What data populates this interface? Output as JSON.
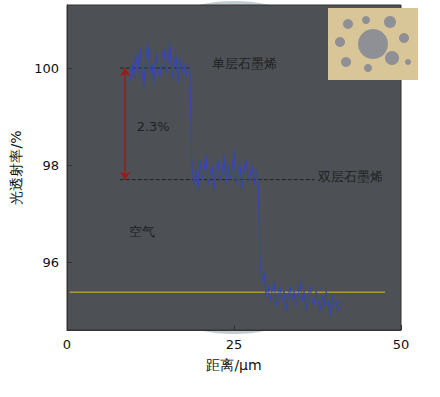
{
  "chart_data": {
    "type": "line",
    "x_label": "距离/μm",
    "y_label": "光透射率/%",
    "color": "#3246b8",
    "xlim": [
      0,
      50
    ],
    "ylim": [
      94.6,
      101.3
    ],
    "xticks": [
      0,
      25,
      50
    ],
    "yticks": [
      96,
      98,
      100
    ],
    "grid": false,
    "x": [
      9.4,
      9.7,
      10.0,
      10.3,
      10.6,
      10.9,
      11.2,
      11.5,
      11.8,
      12.1,
      12.4,
      12.7,
      13.0,
      13.3,
      13.6,
      13.9,
      14.2,
      14.5,
      14.8,
      15.1,
      15.4,
      15.7,
      16.0,
      16.3,
      16.6,
      16.9,
      17.2,
      17.5,
      17.8,
      18.1,
      18.4,
      18.7,
      19.0,
      19.3,
      19.6,
      19.9,
      20.2,
      20.5,
      20.8,
      21.1,
      21.4,
      21.7,
      22.0,
      22.3,
      22.6,
      22.9,
      23.2,
      23.5,
      23.8,
      24.1,
      24.4,
      24.7,
      25.0,
      25.3,
      25.6,
      25.9,
      26.2,
      26.5,
      26.8,
      27.1,
      27.4,
      27.7,
      28.0,
      28.3,
      28.6,
      28.9,
      29.2,
      29.5,
      29.8,
      30.1,
      30.4,
      30.7,
      31.0,
      31.3,
      31.6,
      31.9,
      32.2,
      32.5,
      32.8,
      33.1,
      33.4,
      33.7,
      34.0,
      34.3,
      34.6,
      34.9,
      35.2,
      35.5,
      35.8,
      36.1,
      36.4,
      36.7,
      37.0,
      37.3,
      37.6,
      37.9,
      38.2,
      38.5,
      38.8,
      39.1,
      39.4,
      39.7,
      40.0,
      40.3,
      40.6,
      40.9
    ],
    "values": [
      99.7,
      100.1,
      99.8,
      100.3,
      99.9,
      100.4,
      100.0,
      99.6,
      100.2,
      100.5,
      99.9,
      100.1,
      99.7,
      100.3,
      100.0,
      99.8,
      100.2,
      100.4,
      99.9,
      100.1,
      100.5,
      99.8,
      100.0,
      100.3,
      99.7,
      100.2,
      99.9,
      100.1,
      99.8,
      100.0,
      99.9,
      98.0,
      97.6,
      97.9,
      97.5,
      98.1,
      97.7,
      97.9,
      98.2,
      97.6,
      97.8,
      98.0,
      97.5,
      97.9,
      98.1,
      97.7,
      97.8,
      98.2,
      97.6,
      98.0,
      97.7,
      97.9,
      98.3,
      97.6,
      97.8,
      98.0,
      97.5,
      97.9,
      98.1,
      97.7,
      97.8,
      98.0,
      97.6,
      97.9,
      97.7,
      96.0,
      95.6,
      95.8,
      95.3,
      95.5,
      95.2,
      95.4,
      95.6,
      95.1,
      95.3,
      95.5,
      95.2,
      95.4,
      95.0,
      95.3,
      95.5,
      95.2,
      95.4,
      95.1,
      95.3,
      95.6,
      95.2,
      95.4,
      95.0,
      95.3,
      95.5,
      95.2,
      95.1,
      95.4,
      95.2,
      95.0,
      95.3,
      95.1,
      95.4,
      95.2,
      94.9,
      95.3,
      95.1,
      95.2,
      95.0,
      95.2
    ],
    "reference_lines": [
      {
        "y": 100,
        "x": [
          7.9,
          18.4
        ],
        "color": "#222222",
        "line_style": "dashed"
      },
      {
        "y": 97.7,
        "x": [
          7.9,
          37.1
        ],
        "color": "#222222",
        "line_style": "dashed"
      },
      {
        "y": 95.38,
        "x": [
          0.4,
          47.6
        ],
        "color": "#e0c030",
        "line_style": "solid"
      }
    ],
    "arrow": {
      "x": 8.7,
      "y": [
        100,
        97.7
      ],
      "color": "#9b1c1c"
    },
    "annotations": [
      {
        "text": "单层石墨烯",
        "x": 26.6,
        "y": 100.1
      },
      {
        "text": "双层石墨烯",
        "x": 42.5,
        "y": 97.77
      },
      {
        "text": "空气",
        "x": 11.3,
        "y": 96.64
      },
      {
        "text": "2.3%",
        "x": 12.9,
        "y": 98.8
      }
    ]
  }
}
